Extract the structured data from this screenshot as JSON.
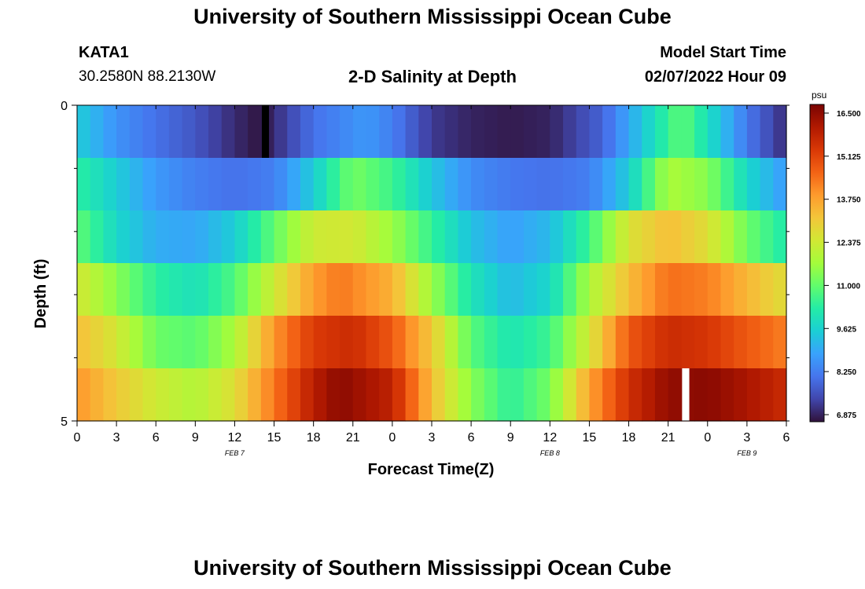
{
  "header": {
    "title": "University of Southern Mississippi Ocean Cube",
    "station_id": "KATA1",
    "coordinates": "30.2580N  88.2130W",
    "plot_title": "2-D Salinity at Depth",
    "model_start_label": "Model Start Time",
    "model_start_value": "02/07/2022 Hour 09"
  },
  "footer": {
    "title": "University of Southern Mississippi Ocean Cube"
  },
  "colors": {
    "colormap": [
      "#30123b",
      "#4146ac",
      "#4675ed",
      "#39a2fc",
      "#1bcfd4",
      "#24eca6",
      "#61fc6c",
      "#a4fc3b",
      "#d1e834",
      "#f3c63a",
      "#fe9b2d",
      "#f36315",
      "#d93806",
      "#b11901",
      "#7a0402"
    ],
    "missing_dark": "#000000",
    "missing_light": "#ffffff"
  },
  "chart_data": {
    "type": "heatmap",
    "title": "2-D Salinity at Depth",
    "xlabel": "Forecast Time(Z)",
    "ylabel": "Depth (ft)",
    "x_tick_labels": [
      "0",
      "3",
      "6",
      "9",
      "12",
      "15",
      "18",
      "21",
      "0",
      "3",
      "6",
      "9",
      "12",
      "15",
      "18",
      "21",
      "0",
      "3",
      "6"
    ],
    "x_hours": [
      0,
      54
    ],
    "date_labels": [
      {
        "label": "FEB 7",
        "hour": 12
      },
      {
        "label": "FEB 8",
        "hour": 36
      },
      {
        "label": "FEB 9",
        "hour": 51
      }
    ],
    "y_tick_labels": [
      "0",
      "5"
    ],
    "ylim": [
      0,
      5
    ],
    "colorbar": {
      "unit": "psu",
      "min": 6.875,
      "max": 16.5,
      "tick_labels": [
        "16.500",
        "15.125",
        "13.750",
        "12.375",
        "11.000",
        "9.625",
        "8.250",
        "6.875"
      ]
    },
    "depth_levels": 6,
    "salinity_rows": [
      {
        "label": "row-0",
        "hours": [
          0,
          3,
          6,
          9,
          12,
          14,
          18,
          22,
          24,
          27,
          30,
          33,
          36,
          40,
          42,
          46,
          48,
          51,
          54
        ],
        "values": [
          9.6,
          8.7,
          8.2,
          7.8,
          7.2,
          6.9,
          8.2,
          8.8,
          8.4,
          7.4,
          7.1,
          7.0,
          7.1,
          8.0,
          9.0,
          11.0,
          10.0,
          8.3,
          7.2
        ]
      },
      {
        "label": "row-1",
        "hours": [
          0,
          3,
          6,
          9,
          12,
          15,
          18,
          21,
          24,
          27,
          30,
          33,
          36,
          39,
          42,
          45,
          48,
          51,
          54
        ],
        "values": [
          10.4,
          9.6,
          8.8,
          8.4,
          8.2,
          8.4,
          9.6,
          11.2,
          10.6,
          9.5,
          8.6,
          8.3,
          8.2,
          8.4,
          9.6,
          11.8,
          11.4,
          9.8,
          8.8
        ]
      },
      {
        "label": "row-2",
        "hours": [
          0,
          3,
          6,
          9,
          12,
          15,
          18,
          21,
          24,
          27,
          30,
          33,
          36,
          39,
          42,
          45,
          48,
          51,
          54
        ],
        "values": [
          11.0,
          9.8,
          9.1,
          9.0,
          9.6,
          11.0,
          12.3,
          12.4,
          11.6,
          10.5,
          9.4,
          8.9,
          9.3,
          10.6,
          12.5,
          13.2,
          12.6,
          11.1,
          10.2
        ]
      },
      {
        "label": "row-3",
        "hours": [
          0,
          3,
          6,
          9,
          12,
          15,
          18,
          20,
          24,
          27,
          30,
          33,
          36,
          39,
          42,
          45,
          48,
          51,
          54
        ],
        "values": [
          12.4,
          11.4,
          10.4,
          10.0,
          10.8,
          12.3,
          13.7,
          14.2,
          13.4,
          11.6,
          10.1,
          9.3,
          9.8,
          11.8,
          13.2,
          14.3,
          14.1,
          13.3,
          12.6
        ]
      },
      {
        "label": "row-4",
        "hours": [
          0,
          3,
          6,
          9,
          12,
          15,
          18,
          21,
          24,
          27,
          30,
          33,
          36,
          39,
          42,
          45,
          48,
          51,
          54
        ],
        "values": [
          13.2,
          12.4,
          11.1,
          10.9,
          11.8,
          13.8,
          15.1,
          15.4,
          14.6,
          13.0,
          10.9,
          10.1,
          10.6,
          12.4,
          14.6,
          15.4,
          15.2,
          14.6,
          14.1
        ]
      },
      {
        "label": "row-5",
        "hours": [
          0,
          3,
          6,
          9,
          12,
          15,
          18,
          20,
          24,
          27,
          30,
          33,
          36,
          39,
          42,
          45,
          48,
          51,
          54
        ],
        "values": [
          13.8,
          13.0,
          12.3,
          11.9,
          12.6,
          14.2,
          15.7,
          16.3,
          15.6,
          13.2,
          11.4,
          10.4,
          11.2,
          13.6,
          15.3,
          16.2,
          16.3,
          15.9,
          15.4
        ]
      }
    ],
    "missing_cells": [
      {
        "row": 0,
        "hour": 14,
        "color": "dark"
      },
      {
        "row": 5,
        "hour": 46,
        "color": "light"
      }
    ]
  }
}
